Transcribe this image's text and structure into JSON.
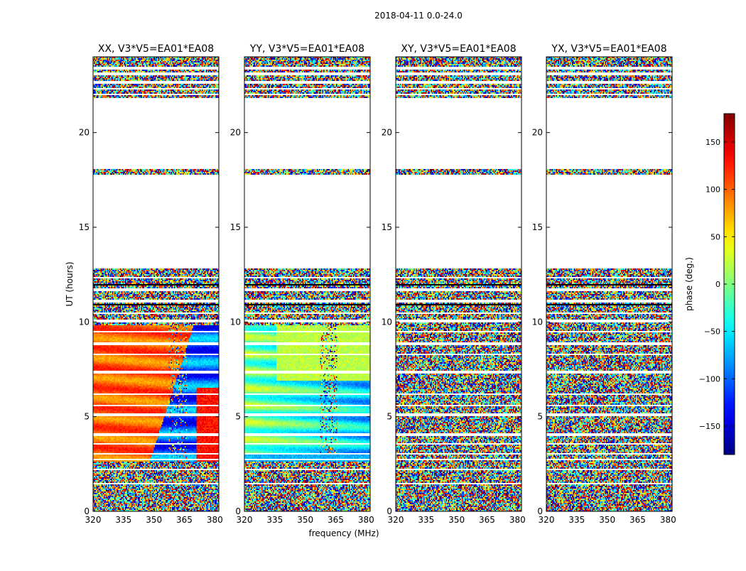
{
  "chart_data": {
    "type": "heatmap",
    "title": "2018-04-11 0.0-24.0",
    "ylabel": "UT (hours)",
    "xlabel": "frequency (MHz)",
    "xlim": [
      320,
      382
    ],
    "ylim": [
      0,
      24
    ],
    "x_ticks": [
      320,
      335,
      350,
      365,
      380
    ],
    "y_ticks": [
      0,
      5,
      10,
      15,
      20
    ],
    "panels": [
      {
        "title": "XX, V3*V5=EA01*EA08",
        "pattern": "xx"
      },
      {
        "title": "YY, V3*V5=EA01*EA08",
        "pattern": "yy"
      },
      {
        "title": "XY, V3*V5=EA01*EA08",
        "pattern": "noise"
      },
      {
        "title": "YX, V3*V5=EA01*EA08",
        "pattern": "noise"
      }
    ],
    "data_blocks_hours": [
      {
        "from": 0.0,
        "to": 2.6,
        "kind": "noise"
      },
      {
        "from": 2.6,
        "to": 9.8,
        "kind": "signal"
      },
      {
        "from": 9.8,
        "to": 12.8,
        "kind": "noise"
      },
      {
        "from": 17.8,
        "to": 18.1,
        "kind": "noise"
      },
      {
        "from": 21.8,
        "to": 24.0,
        "kind": "noise"
      }
    ],
    "colorbar": {
      "label": "phase (deg.)",
      "range": [
        -180,
        180
      ],
      "ticks": [
        150,
        100,
        50,
        0,
        -50,
        -100,
        -150
      ],
      "tick_labels": [
        "150",
        "100",
        "50",
        "0",
        "−50",
        "−100",
        "−150"
      ],
      "colormap": "jet"
    }
  }
}
